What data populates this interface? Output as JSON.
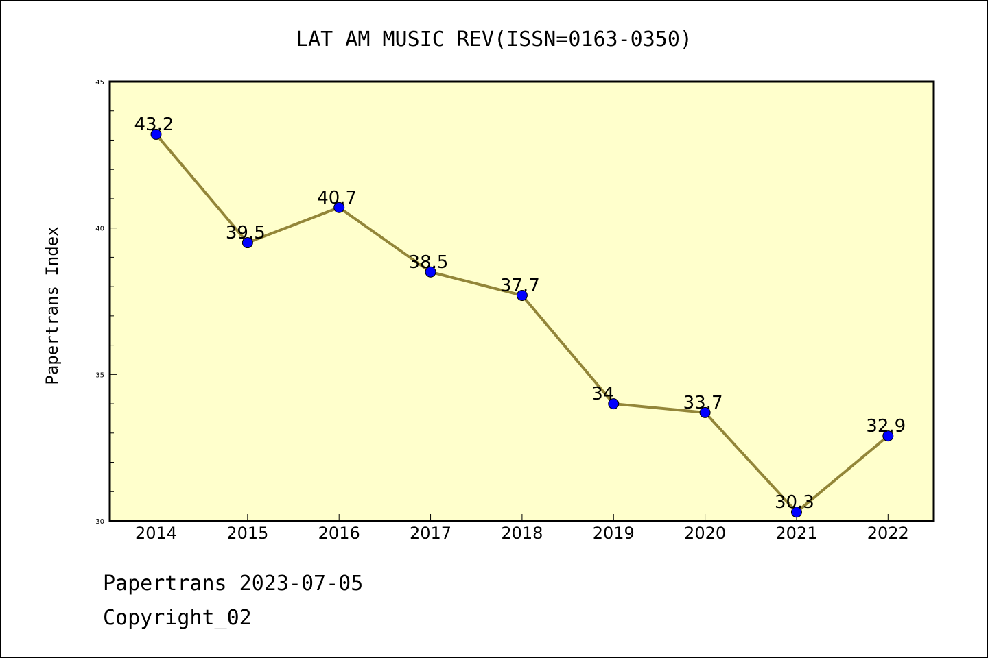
{
  "chart_data": {
    "type": "line",
    "title": "LAT AM MUSIC REV(ISSN=0163-0350)",
    "ylabel": "Papertrans Index",
    "xlabel": "",
    "categories": [
      "2014",
      "2015",
      "2016",
      "2017",
      "2018",
      "2019",
      "2020",
      "2021",
      "2022"
    ],
    "values": [
      43.2,
      39.5,
      40.7,
      38.5,
      37.7,
      34,
      33.7,
      30.3,
      32.9
    ],
    "data_labels": [
      "43.2",
      "39.5",
      "40.7",
      "38.5",
      "37.7",
      "34",
      "33.7",
      "30.3",
      "32.9"
    ],
    "ylim": [
      30,
      45
    ],
    "yticks": [
      "30",
      "35",
      "40",
      "45"
    ],
    "grid": false,
    "legend": "none",
    "colors": {
      "plot_background": "#ffffcc",
      "line": "#938639",
      "marker": "#0000ff",
      "axes": "#000000"
    }
  },
  "footer": {
    "date_line": "Papertrans 2023-07-05",
    "copyright": "Copyright_02"
  }
}
